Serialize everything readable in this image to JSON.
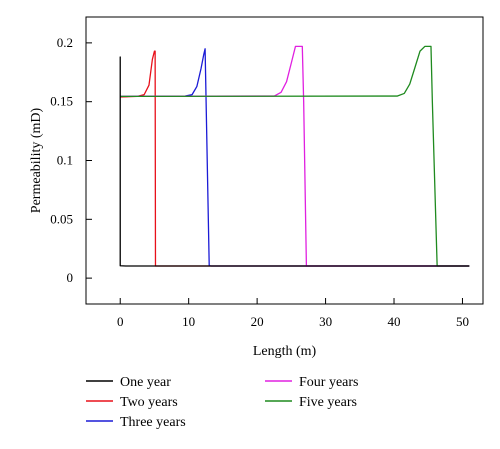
{
  "chart_data": {
    "type": "line",
    "xlabel": "Length (m)",
    "ylabel": "Permeability (mD)",
    "xlim": [
      -5,
      53
    ],
    "ylim": [
      -0.022,
      0.222
    ],
    "xticks": [
      0,
      10,
      20,
      30,
      40,
      50
    ],
    "yticks": [
      0,
      0.05,
      0.1,
      0.15,
      0.2
    ],
    "ytick_labels": [
      "0",
      "0.05",
      "0.1",
      "0.15",
      "0.2"
    ],
    "grid": false,
    "legend_placement": "bottom",
    "series": [
      {
        "name": "One year",
        "color": "#000000",
        "x": [
          0,
          0,
          0,
          0.8,
          51
        ],
        "y": [
          0.0105,
          0.188,
          0.0105,
          0.0103,
          0.0103
        ]
      },
      {
        "name": "Two years",
        "color": "#e8101a",
        "x": [
          0,
          2.5,
          3.5,
          4.2,
          4.7,
          5,
          5.1,
          5.15,
          5.3,
          51
        ],
        "y": [
          0.154,
          0.1545,
          0.156,
          0.164,
          0.186,
          0.193,
          0.193,
          0.0103,
          0.0103,
          0.0103
        ]
      },
      {
        "name": "Three years",
        "color": "#1b1bd6",
        "x": [
          0,
          9.5,
          10.5,
          11.2,
          11.8,
          12.2,
          12.4,
          13,
          13.3,
          51
        ],
        "y": [
          0.1545,
          0.1548,
          0.156,
          0.163,
          0.178,
          0.19,
          0.195,
          0.0105,
          0.0103,
          0.0103
        ]
      },
      {
        "name": "Four years",
        "color": "#e020e0",
        "x": [
          0,
          22.5,
          23.5,
          24.3,
          25,
          25.6,
          26.6,
          26.8,
          27.2,
          51
        ],
        "y": [
          0.1545,
          0.1548,
          0.158,
          0.167,
          0.183,
          0.197,
          0.197,
          0.15,
          0.0103,
          0.0103
        ]
      },
      {
        "name": "Five years",
        "color": "#1f8a1f",
        "x": [
          0,
          40.5,
          41.5,
          42.3,
          43,
          43.8,
          44.5,
          45.4,
          45.6,
          46.3,
          51
        ],
        "y": [
          0.1545,
          0.1548,
          0.157,
          0.165,
          0.178,
          0.193,
          0.197,
          0.197,
          0.15,
          0.0103,
          0.0103
        ]
      }
    ]
  }
}
